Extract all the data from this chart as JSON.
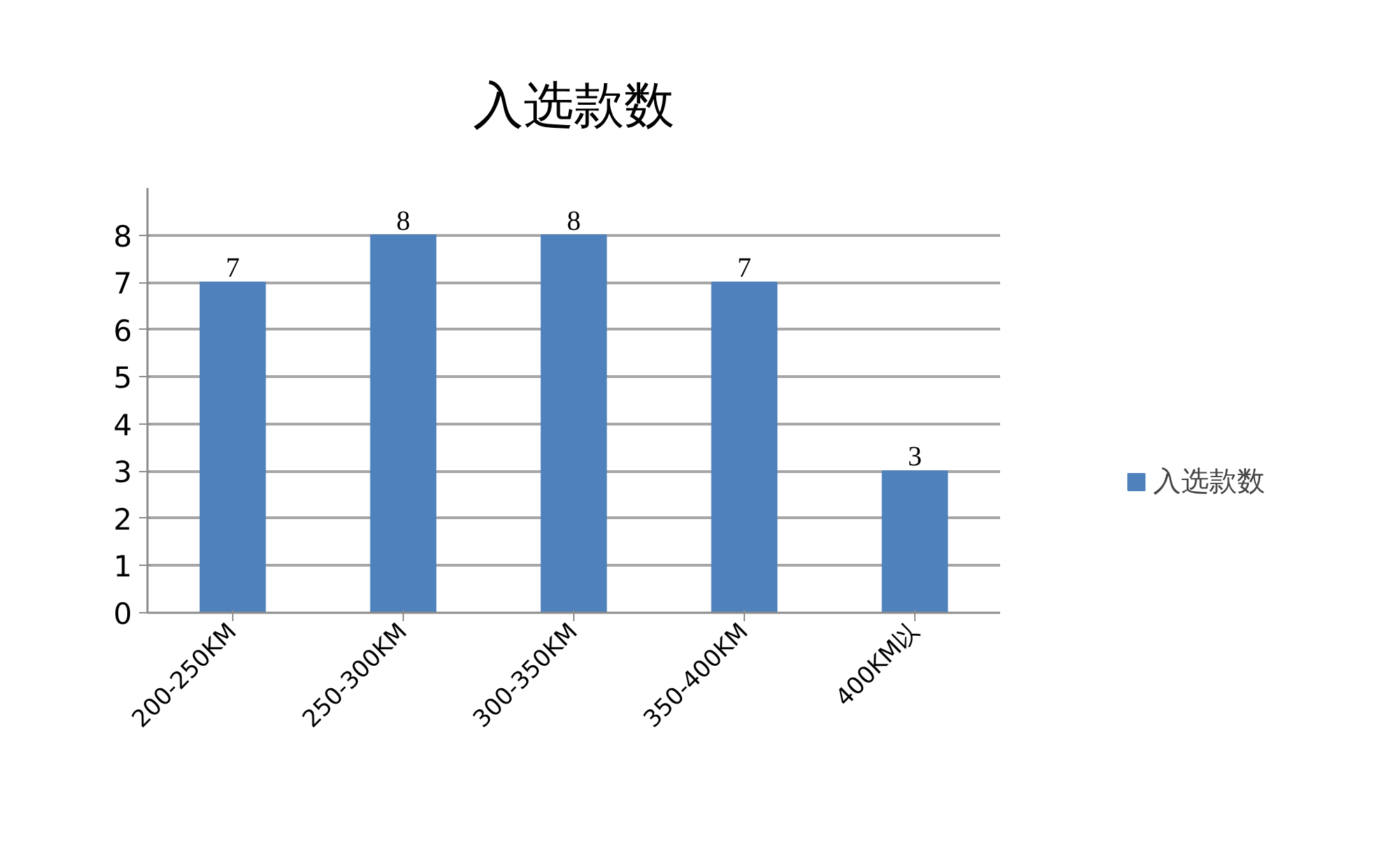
{
  "chart_data": {
    "type": "bar",
    "title": "入选款数",
    "categories": [
      "200-250KM",
      "250-300KM",
      "300-350KM",
      "350-400KM",
      "400KM以"
    ],
    "series": [
      {
        "name": "入选款数",
        "color": "#4f81bd",
        "values": [
          7,
          8,
          8,
          7,
          3
        ]
      }
    ],
    "ylim": [
      0,
      9
    ],
    "yticks": [
      0,
      1,
      2,
      3,
      4,
      5,
      6,
      7,
      8
    ],
    "grid": "y",
    "legend": "right",
    "data_labels": true
  }
}
